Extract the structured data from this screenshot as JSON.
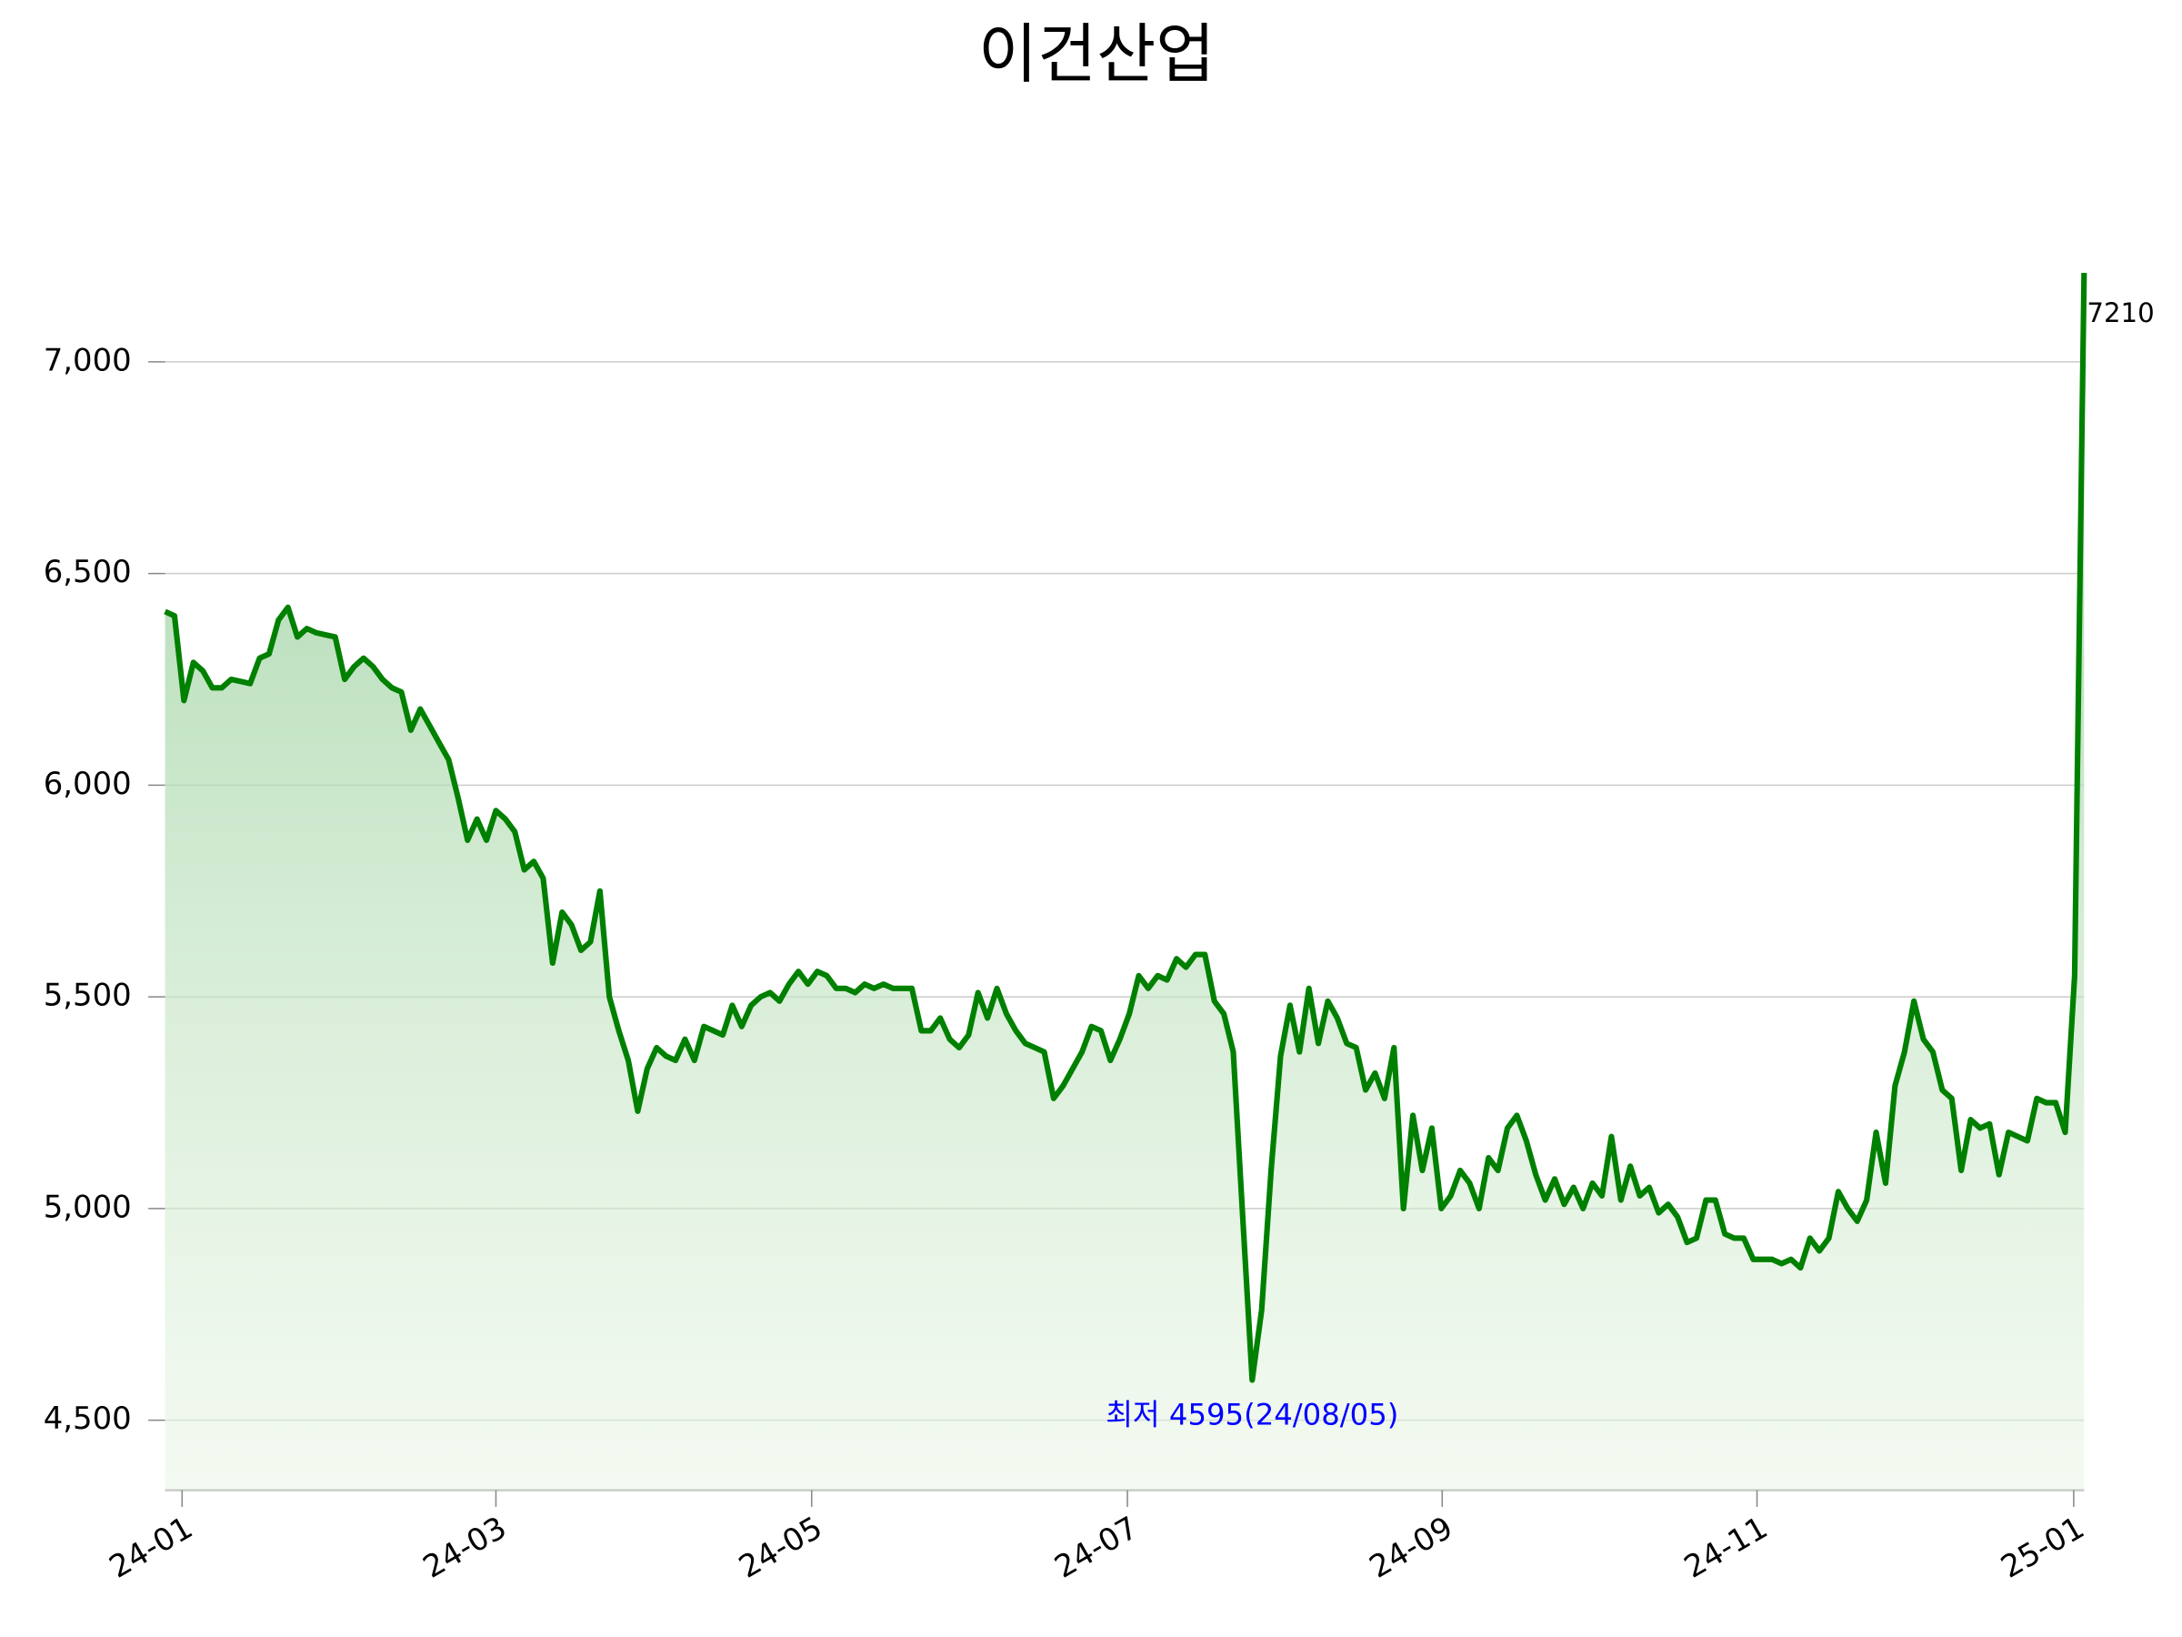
{
  "chart_data": {
    "type": "line",
    "title": "이건산업",
    "series": [
      {
        "name": "이건산업",
        "color": "#008000",
        "values": [
          6410,
          6400,
          6200,
          6290,
          6270,
          6230,
          6230,
          6250,
          6245,
          6240,
          6300,
          6310,
          6390,
          6420,
          6350,
          6370,
          6360,
          6355,
          6350,
          6250,
          6280,
          6300,
          6280,
          6250,
          6230,
          6220,
          6130,
          6180,
          6140,
          6100,
          6060,
          5970,
          5870,
          5920,
          5870,
          5940,
          5920,
          5890,
          5800,
          5820,
          5780,
          5580,
          5700,
          5670,
          5610,
          5630,
          5750,
          5500,
          5420,
          5350,
          5230,
          5330,
          5380,
          5360,
          5350,
          5400,
          5350,
          5430,
          5420,
          5410,
          5480,
          5430,
          5480,
          5500,
          5510,
          5490,
          5530,
          5560,
          5530,
          5560,
          5550,
          5520,
          5520,
          5510,
          5530,
          5520,
          5530,
          5520,
          5520,
          5520,
          5420,
          5420,
          5450,
          5400,
          5380,
          5410,
          5510,
          5450,
          5520,
          5460,
          5420,
          5390,
          5380,
          5370,
          5260,
          5290,
          5330,
          5370,
          5430,
          5420,
          5350,
          5400,
          5460,
          5550,
          5520,
          5550,
          5540,
          5590,
          5570,
          5600,
          5600,
          5490,
          5460,
          5370,
          4980,
          4595,
          4760,
          5090,
          5360,
          5480,
          5370,
          5520,
          5390,
          5490,
          5450,
          5390,
          5380,
          5280,
          5320,
          5260,
          5380,
          5000,
          5220,
          5090,
          5190,
          5000,
          5030,
          5090,
          5060,
          5000,
          5120,
          5090,
          5190,
          5220,
          5160,
          5080,
          5020,
          5070,
          5010,
          5050,
          5000,
          5060,
          5030,
          5170,
          5020,
          5100,
          5030,
          5050,
          4990,
          5010,
          4980,
          4920,
          4930,
          5020,
          5020,
          4940,
          4930,
          4930,
          4880,
          4880,
          4880,
          4870,
          4880,
          4860,
          4930,
          4900,
          4930,
          5040,
          5000,
          4970,
          5020,
          5180,
          5060,
          5290,
          5370,
          5490,
          5400,
          5370,
          5280,
          5260,
          5090,
          5210,
          5190,
          5200,
          5080,
          5180,
          5170,
          5160,
          5260,
          5250,
          5250,
          5180,
          5550,
          7210
        ]
      }
    ],
    "xlim": [
      0,
      203
    ],
    "xticks": [
      {
        "value": 1.8,
        "label": "24-01"
      },
      {
        "value": 35,
        "label": "24-03"
      },
      {
        "value": 68.4,
        "label": "24-05"
      },
      {
        "value": 101.8,
        "label": "24-07"
      },
      {
        "value": 135.1,
        "label": "24-09"
      },
      {
        "value": 168.4,
        "label": "24-11"
      },
      {
        "value": 201.9,
        "label": "25-01"
      }
    ],
    "ylim": [
      4335,
      7230
    ],
    "yticks": [
      {
        "value": 4500,
        "label": "4,500"
      },
      {
        "value": 5000,
        "label": "5,000"
      },
      {
        "value": 5500,
        "label": "5,500"
      },
      {
        "value": 6000,
        "label": "6,000"
      },
      {
        "value": 6500,
        "label": "6,500"
      },
      {
        "value": 7000,
        "label": "7,000"
      }
    ],
    "grid": true,
    "annotations": [
      {
        "text": "최저 4595(24/08/05)",
        "index": 115,
        "color": "#0000ff"
      }
    ]
  }
}
